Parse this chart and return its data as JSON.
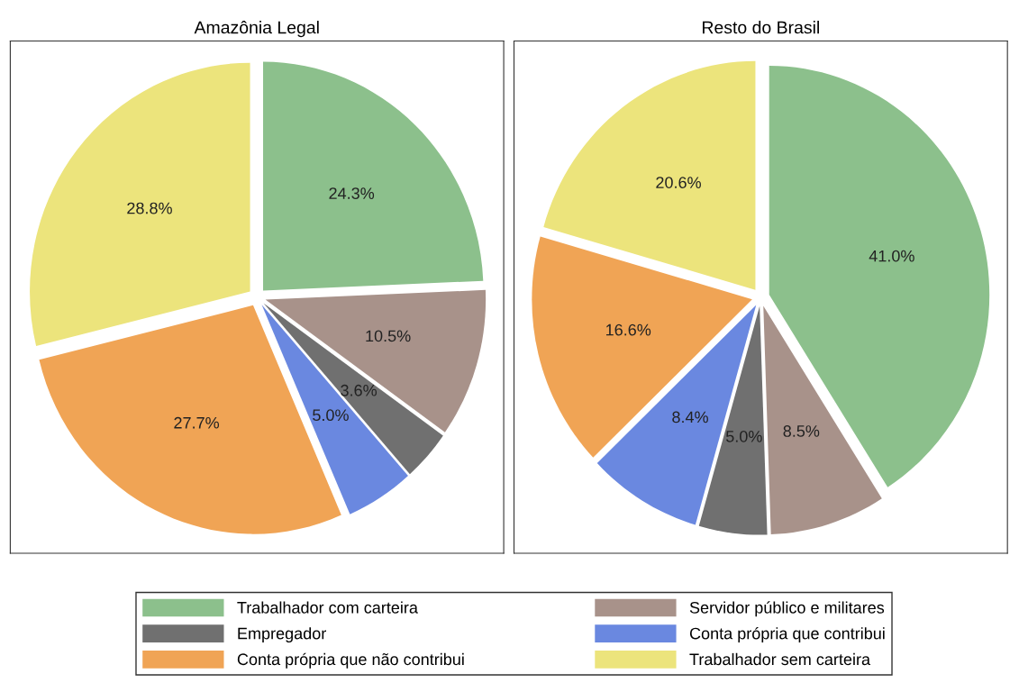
{
  "chart_data": [
    {
      "type": "pie",
      "title": "Amazônia Legal",
      "categories": [
        "Trabalhador com carteira",
        "Servidor público e militares",
        "Empregador",
        "Conta própria que contribui",
        "Conta própria que não contribui",
        "Trabalhador sem carteira"
      ],
      "values": [
        24.3,
        10.5,
        3.6,
        5.0,
        27.7,
        28.8
      ],
      "value_labels": [
        "24.3%",
        "10.5%",
        "3.6%",
        "5.0%",
        "27.7%",
        "28.8%"
      ],
      "colors": [
        "#8cc08c",
        "#a8928a",
        "#707070",
        "#6a88e0",
        "#f0a455",
        "#ece47c"
      ],
      "legend": "bottom"
    },
    {
      "type": "pie",
      "title": "Resto do Brasil",
      "categories": [
        null,
        null,
        null,
        null,
        null,
        null
      ],
      "values": [
        41.0,
        8.5,
        5.0,
        8.4,
        16.6,
        20.6
      ],
      "value_labels": [
        "41.0%",
        "8.5%",
        "5.0%",
        "8.4%",
        "16.6%",
        "20.6%"
      ],
      "colors": [
        "#8cc08c",
        "#a8928a",
        "#707070",
        "#6a88e0",
        "#f0a455",
        "#ece47c"
      ]
    }
  ]
}
